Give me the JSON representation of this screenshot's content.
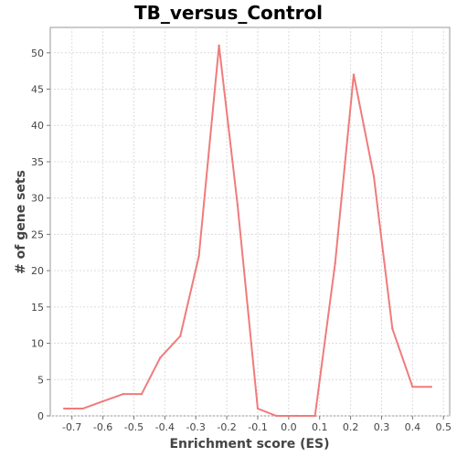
{
  "chart_data": {
    "type": "line",
    "title": "TB_versus_Control",
    "xlabel": "Enrichment score (ES)",
    "ylabel": "# of gene sets",
    "xlim": [
      -0.77,
      0.52
    ],
    "ylim": [
      0,
      53.5
    ],
    "xticks": [
      -0.7,
      -0.6,
      -0.5,
      -0.4,
      -0.3,
      -0.2,
      -0.1,
      0.0,
      0.1,
      0.2,
      0.3,
      0.4,
      0.5
    ],
    "xtick_labels": [
      "-0.7",
      "-0.6",
      "-0.5",
      "-0.4",
      "-0.3",
      "-0.2",
      "-0.1",
      "0.0",
      "0.1",
      "0.2",
      "0.3",
      "0.4",
      "0.5"
    ],
    "yticks": [
      0,
      5,
      10,
      15,
      20,
      25,
      30,
      35,
      40,
      45,
      50
    ],
    "ytick_labels": [
      "0",
      "5",
      "10",
      "15",
      "20",
      "25",
      "30",
      "35",
      "40",
      "45",
      "50"
    ],
    "grid": true,
    "series": [
      {
        "color": "#f07b7b",
        "x": [
          -0.725,
          -0.665,
          -0.6,
          -0.535,
          -0.475,
          -0.415,
          -0.35,
          -0.29,
          -0.225,
          -0.165,
          -0.1,
          -0.04,
          0.025,
          0.085,
          0.15,
          0.21,
          0.275,
          0.335,
          0.4,
          0.46
        ],
        "y": [
          1,
          1,
          2,
          3,
          3,
          8,
          11,
          22,
          51,
          29,
          1,
          0,
          0,
          0,
          21,
          47,
          33,
          12,
          4,
          4
        ]
      }
    ]
  }
}
